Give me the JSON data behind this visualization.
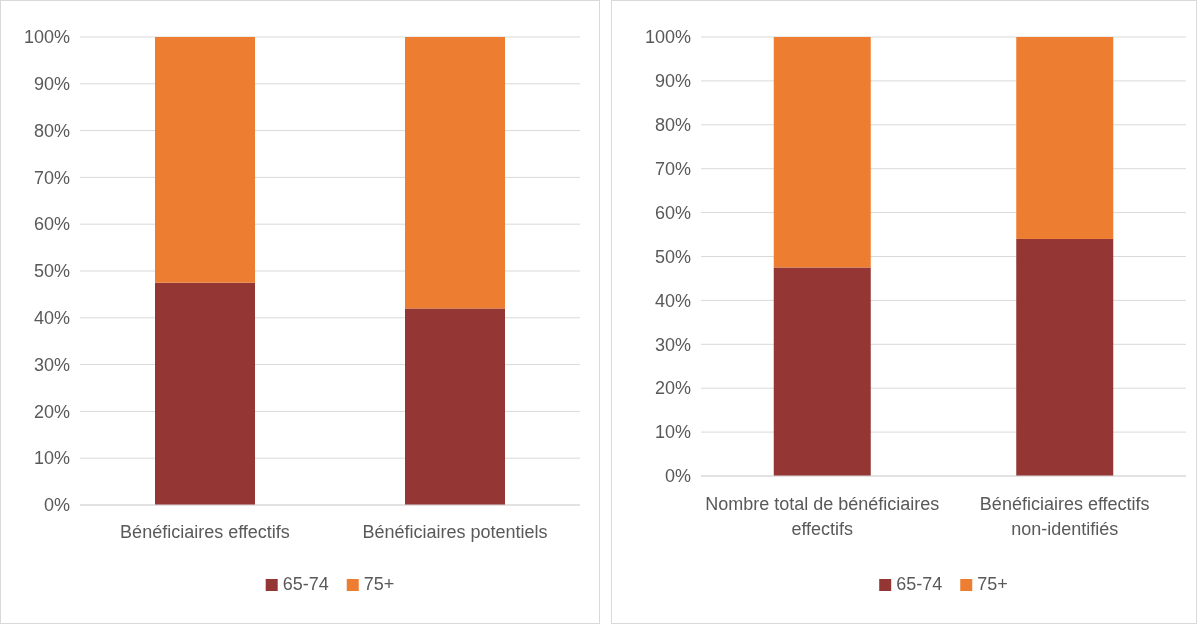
{
  "chart_data": [
    {
      "type": "bar",
      "stacked": true,
      "categories": [
        "Bénéficiaires effectifs",
        "Bénéficiaires potentiels"
      ],
      "series": [
        {
          "name": "65-74",
          "color": "#943634",
          "values": [
            47.5,
            42
          ]
        },
        {
          "name": "75+",
          "color": "#ed7d31",
          "values": [
            52.5,
            58
          ]
        }
      ],
      "ylim": [
        0,
        100
      ],
      "yticks": [
        {
          "value": 0,
          "label": "0%"
        },
        {
          "value": 10,
          "label": "10%"
        },
        {
          "value": 20,
          "label": "20%"
        },
        {
          "value": 30,
          "label": "30%"
        },
        {
          "value": 40,
          "label": "40%"
        },
        {
          "value": 50,
          "label": "50%"
        },
        {
          "value": 60,
          "label": "60%"
        },
        {
          "value": 70,
          "label": "70%"
        },
        {
          "value": 80,
          "label": "80%"
        },
        {
          "value": 90,
          "label": "90%"
        },
        {
          "value": 100,
          "label": "100%"
        }
      ],
      "grid": "y",
      "legend": "bottom"
    },
    {
      "type": "bar",
      "stacked": true,
      "categories": [
        "Nombre total de bénéficiaires effectifs",
        "Bénéficiaires effectifs non-identifiés"
      ],
      "series": [
        {
          "name": "65-74",
          "color": "#943634",
          "values": [
            47.5,
            54
          ]
        },
        {
          "name": "75+",
          "color": "#ed7d31",
          "values": [
            52.5,
            46
          ]
        }
      ],
      "ylim": [
        0,
        100
      ],
      "yticks": [
        {
          "value": 0,
          "label": "0%"
        },
        {
          "value": 10,
          "label": "10%"
        },
        {
          "value": 20,
          "label": "20%"
        },
        {
          "value": 30,
          "label": "30%"
        },
        {
          "value": 40,
          "label": "40%"
        },
        {
          "value": 50,
          "label": "50%"
        },
        {
          "value": 60,
          "label": "60%"
        },
        {
          "value": 70,
          "label": "70%"
        },
        {
          "value": 80,
          "label": "80%"
        },
        {
          "value": 90,
          "label": "90%"
        },
        {
          "value": 100,
          "label": "100%"
        }
      ],
      "grid": "y",
      "legend": "bottom"
    }
  ]
}
